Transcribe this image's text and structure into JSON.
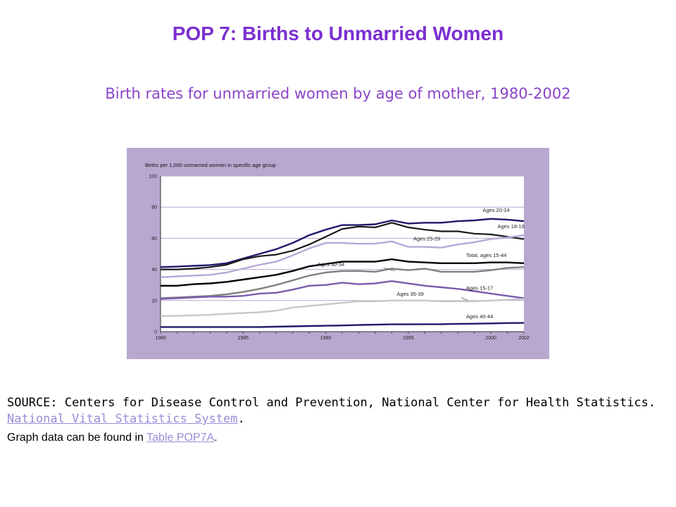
{
  "slide": {
    "title": "POP 7: Births to Unmarried Women",
    "subtitle": "Birth rates for unmarried women by age of mother, 1980-2002"
  },
  "source": {
    "prefix": "SOURCE: Centers for Disease Control and Prevention, National Center for Health Statistics. ",
    "link_text": "National Vital Statistics System",
    "suffix": "."
  },
  "note": {
    "prefix": "Graph data can be found in ",
    "link_text": "Table POP7A",
    "suffix": "."
  },
  "colors": {
    "background": "#b8a8d0",
    "plot_area": "#ffffff",
    "gridline": "#b8a8d0",
    "ages_20_24": "#1e1a6b",
    "ages_18_19": "#1a1a1a",
    "ages_25_29": "#b8a8d8",
    "total": "#000000",
    "ages_30_34": "#808080",
    "ages_15_17": "#7a5cae",
    "ages_35_39": "#c8c8c8",
    "ages_40_44": "#1e1a6b"
  },
  "chart_data": {
    "type": "line",
    "title": "",
    "ylabel": "Births per 1,000 unmarried women in specific age group",
    "xlabel": "",
    "ylim": [
      0,
      100
    ],
    "y_ticks": [
      0,
      20,
      40,
      60,
      80,
      100
    ],
    "x_tick_labels": [
      "1980",
      "1985",
      "1990",
      "1995",
      "2000",
      "2002"
    ],
    "grid": true,
    "legend": "inline labels",
    "x": [
      1980,
      1981,
      1982,
      1983,
      1984,
      1985,
      1986,
      1987,
      1988,
      1989,
      1990,
      1991,
      1992,
      1993,
      1994,
      1995,
      1996,
      1997,
      1998,
      1999,
      2000,
      2001,
      2002
    ],
    "series": [
      {
        "name": "Ages 20-24",
        "values": [
          41.5,
          41.8,
          42.3,
          42.8,
          44,
          47,
          50,
          53,
          57,
          62,
          65.5,
          68.5,
          68.5,
          69,
          71.5,
          69.5,
          70,
          70,
          71,
          71.5,
          72.5,
          72,
          71
        ]
      },
      {
        "name": "Ages 18-19",
        "values": [
          40,
          40,
          40.5,
          41.5,
          43,
          46.5,
          48.5,
          49.5,
          52,
          56,
          61,
          66,
          67.5,
          67,
          70,
          67,
          65.5,
          64.5,
          64.5,
          63,
          62.5,
          61,
          59.5
        ]
      },
      {
        "name": "Ages 25-29",
        "values": [
          35,
          35.5,
          36,
          36.5,
          38,
          40.5,
          43,
          45,
          49,
          53.5,
          57,
          57,
          56.5,
          56.5,
          58,
          54.5,
          54.5,
          54,
          56,
          57.5,
          59.5,
          60.5,
          62
        ]
      },
      {
        "name": "Total, ages 15-44",
        "values": [
          29.5,
          29.5,
          30.5,
          31,
          32,
          33.5,
          35,
          36.5,
          39,
          42,
          43.5,
          45,
          45,
          45,
          46.5,
          45,
          44.5,
          44,
          44,
          44,
          44.5,
          44.5,
          44
        ]
      },
      {
        "name": "Ages 30-34",
        "values": [
          21.5,
          22,
          22.5,
          23,
          24,
          25.5,
          27.5,
          30,
          33,
          36,
          38,
          39,
          39,
          38.5,
          40.5,
          39.5,
          40.5,
          38.5,
          38.5,
          38.5,
          39.5,
          41,
          41.5
        ]
      },
      {
        "name": "Ages 15-17",
        "values": [
          21,
          21.5,
          22,
          22.5,
          22.5,
          23,
          24.5,
          25,
          27,
          29.5,
          30,
          31.5,
          30.5,
          31,
          32.5,
          31,
          29.5,
          28.5,
          27.5,
          26,
          24.5,
          23,
          21.5
        ]
      },
      {
        "name": "Ages 35-39",
        "values": [
          10,
          10.2,
          10.5,
          10.8,
          11.5,
          12,
          12.5,
          13.5,
          15.5,
          16.5,
          17.5,
          18.5,
          19.5,
          19.5,
          20,
          20,
          20,
          19.5,
          19.5,
          19.5,
          20,
          20.5,
          21
        ]
      },
      {
        "name": "Ages 40-44",
        "values": [
          3,
          3,
          3,
          3,
          3,
          3,
          3,
          3.2,
          3.4,
          3.6,
          3.8,
          4,
          4.3,
          4.5,
          4.7,
          4.7,
          4.8,
          4.8,
          5,
          5.1,
          5.3,
          5.5,
          5.6
        ]
      }
    ]
  }
}
